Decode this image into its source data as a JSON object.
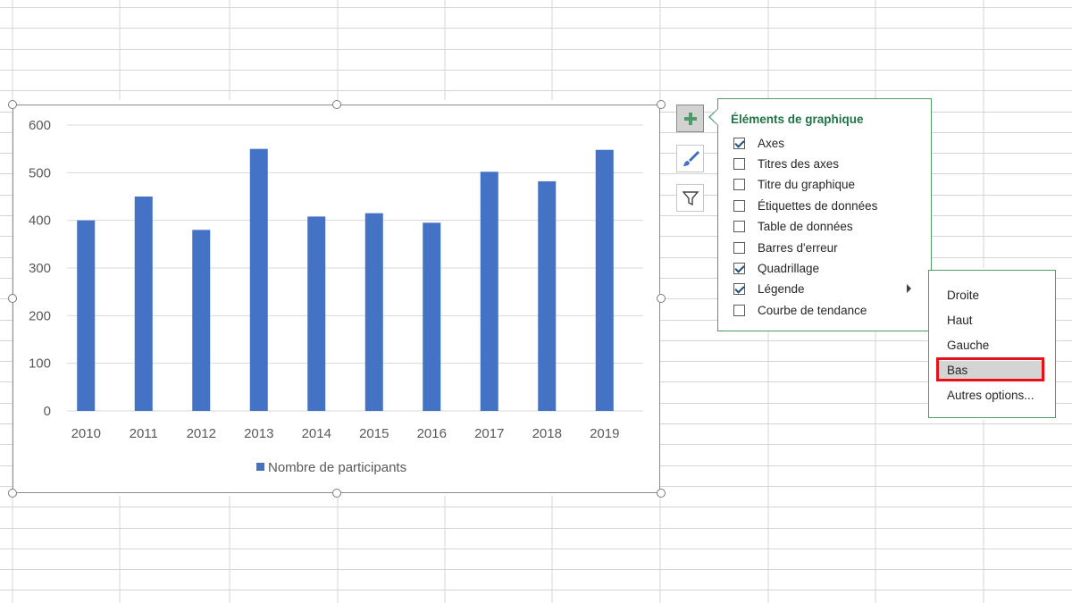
{
  "chart_data": {
    "type": "bar",
    "categories": [
      "2010",
      "2011",
      "2012",
      "2013",
      "2014",
      "2015",
      "2016",
      "2017",
      "2018",
      "2019"
    ],
    "series": [
      {
        "name": "Nombre de participants",
        "values": [
          400,
          450,
          380,
          550,
          408,
          415,
          395,
          502,
          482,
          548
        ],
        "color": "#4472c4"
      }
    ],
    "yticks": [
      "0",
      "100",
      "200",
      "300",
      "400",
      "500",
      "600"
    ],
    "ylim": [
      0,
      600
    ],
    "grid": true,
    "legend_position": "bottom"
  },
  "side_buttons": {
    "elements_icon": "plus-icon",
    "styles_icon": "brush-icon",
    "filters_icon": "funnel-icon"
  },
  "elements_panel": {
    "title": "Éléments de graphique",
    "items": [
      {
        "label": "Axes",
        "checked": true
      },
      {
        "label": "Titres des axes",
        "checked": false
      },
      {
        "label": "Titre du graphique",
        "checked": false
      },
      {
        "label": "Étiquettes de données",
        "checked": false
      },
      {
        "label": "Table de données",
        "checked": false
      },
      {
        "label": "Barres d'erreur",
        "checked": false
      },
      {
        "label": "Quadrillage",
        "checked": true
      },
      {
        "label": "Légende",
        "checked": true
      },
      {
        "label": "Courbe de tendance",
        "checked": false
      }
    ]
  },
  "legend_submenu": {
    "items": [
      "Droite",
      "Haut",
      "Gauche",
      "Bas",
      "Autres options..."
    ],
    "selected": "Bas"
  },
  "colors": {
    "accent_green": "#217346",
    "bar_blue": "#4472c4",
    "highlight_red": "#e5121b"
  }
}
